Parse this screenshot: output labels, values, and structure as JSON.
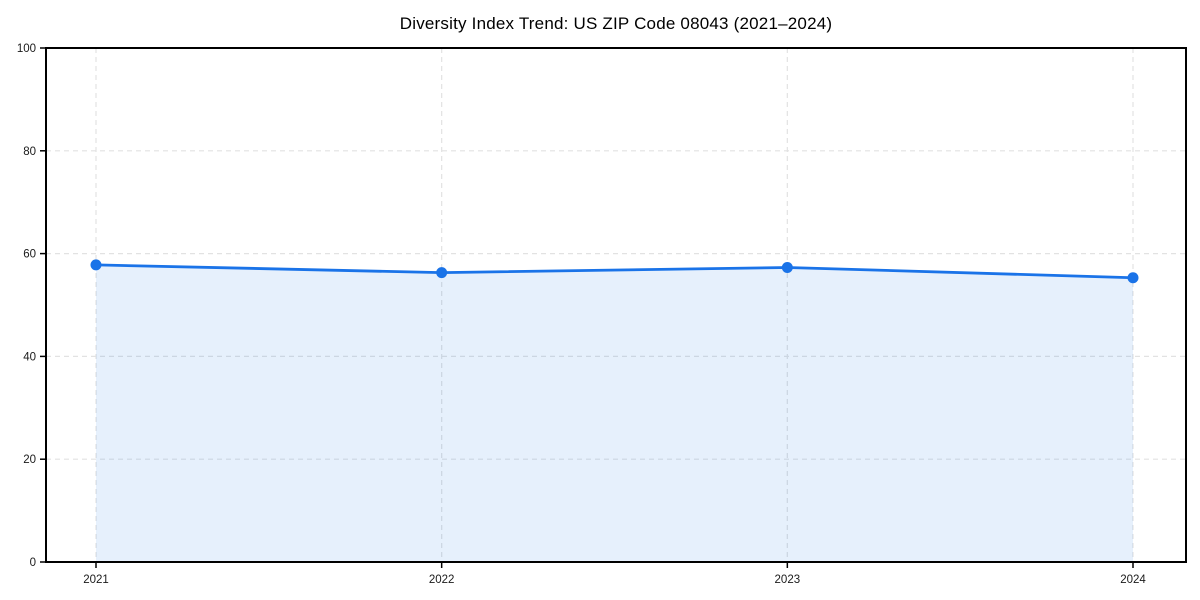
{
  "page": {
    "background": "#ffffff"
  },
  "chart_data": {
    "type": "area",
    "title": "Diversity Index Trend: US ZIP Code 08043 (2021–2024)",
    "series_name": "Diversity Index",
    "categories": [
      "2021",
      "2022",
      "2023",
      "2024"
    ],
    "values": [
      57.8,
      56.3,
      57.3,
      55.3
    ],
    "xlabel": "",
    "ylabel": "",
    "ylim": [
      0,
      100
    ],
    "yticks": [
      0,
      20,
      40,
      60,
      80,
      100
    ],
    "grid": "dashed, both axes",
    "legend_position": "none",
    "line_color": "#1a73e8",
    "marker_color": "#1a73e8",
    "fill_color": "#1a73e8",
    "fill_opacity": 0.11,
    "axis_color": "#000000",
    "grid_color": "#e2e2e2",
    "tick_label_color": "#1a1a1a",
    "title_color": "#000000"
  }
}
